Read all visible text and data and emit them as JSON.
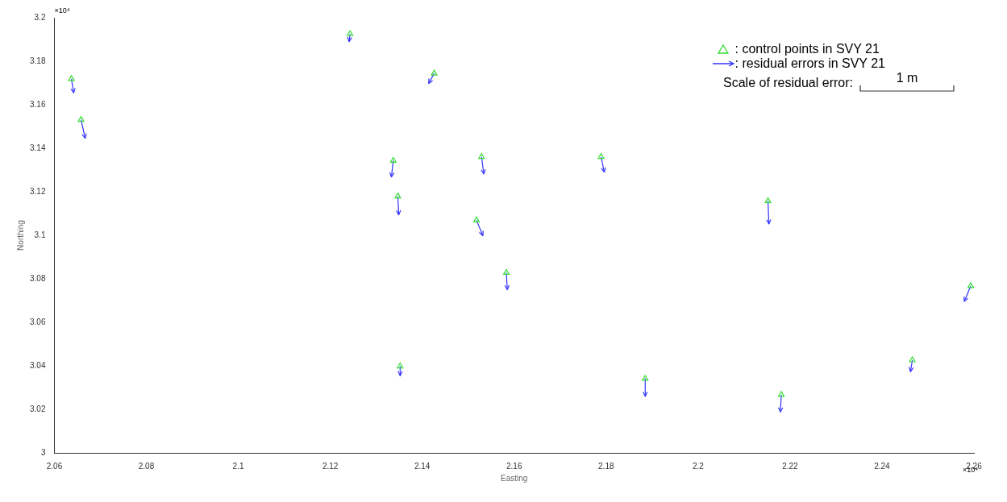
{
  "chart_data": {
    "type": "scatter",
    "xlabel": "Easting",
    "ylabel": "Northing",
    "xlim": [
      2.06,
      2.26
    ],
    "xticks": [
      2.06,
      2.08,
      2.1,
      2.12,
      2.14,
      2.16,
      2.18,
      2.2,
      2.22,
      2.24,
      2.26
    ],
    "ylim": [
      3,
      3.2
    ],
    "yticks": [
      3,
      3.02,
      3.04,
      3.06,
      3.08,
      3.1,
      3.12,
      3.14,
      3.16,
      3.18,
      3.2
    ],
    "grid": false,
    "legend": "top right",
    "annotations": [
      "×10⁴",
      "×10⁴",
      "Scale of residual error:",
      "1 m"
    ],
    "series": [
      {
        "name": ": control points in SVY 21",
        "type": "scatter",
        "marker": "triangle",
        "color": "#33dd33",
        "x": [
          2.0637,
          2.0658,
          2.1243,
          2.1426,
          2.1337,
          2.1529,
          2.1789,
          2.1347,
          2.1518,
          2.2152,
          2.1583,
          2.2593,
          2.1352,
          2.1885,
          2.2181,
          2.2466
        ],
        "values": [
          3.1719,
          3.1531,
          3.1925,
          3.1744,
          3.1343,
          3.1361,
          3.1361,
          3.1179,
          3.1069,
          3.1158,
          3.0828,
          3.0767,
          3.0398,
          3.0341,
          3.0267,
          3.0426
        ]
      },
      {
        "name": ": residual errors in SVY 21",
        "type": "line",
        "marker": "none",
        "color": "#3333ff",
        "x": [
          2.0637,
          2.0642,
          null,
          2.0658,
          2.0667,
          null,
          2.1243,
          2.1241,
          null,
          2.1426,
          2.1414,
          null,
          2.1337,
          2.1333,
          null,
          2.1529,
          2.1534,
          null,
          2.1789,
          2.1796,
          null,
          2.1347,
          2.1349,
          null,
          2.1518,
          2.1532,
          null,
          2.2152,
          2.2154,
          null,
          2.1583,
          2.1585,
          null,
          2.2593,
          2.2579,
          null,
          2.1352,
          2.1352,
          null,
          2.1885,
          2.1885,
          null,
          2.2181,
          2.2179,
          null,
          2.2466,
          2.2462
        ],
        "values": [
          3.1719,
          3.1655,
          null,
          3.1531,
          3.1446,
          null,
          3.1925,
          3.189,
          null,
          3.1744,
          3.1698,
          null,
          3.1343,
          3.1268,
          null,
          3.1361,
          3.1282,
          null,
          3.1361,
          3.129,
          null,
          3.1179,
          3.1094,
          null,
          3.1069,
          3.0998,
          null,
          3.1158,
          3.1052,
          null,
          3.0828,
          3.075,
          null,
          3.0767,
          3.0696,
          null,
          3.0398,
          3.0355,
          null,
          3.0341,
          3.026,
          null,
          3.0267,
          3.0188,
          null,
          3.0426,
          3.0373
        ]
      }
    ]
  }
}
